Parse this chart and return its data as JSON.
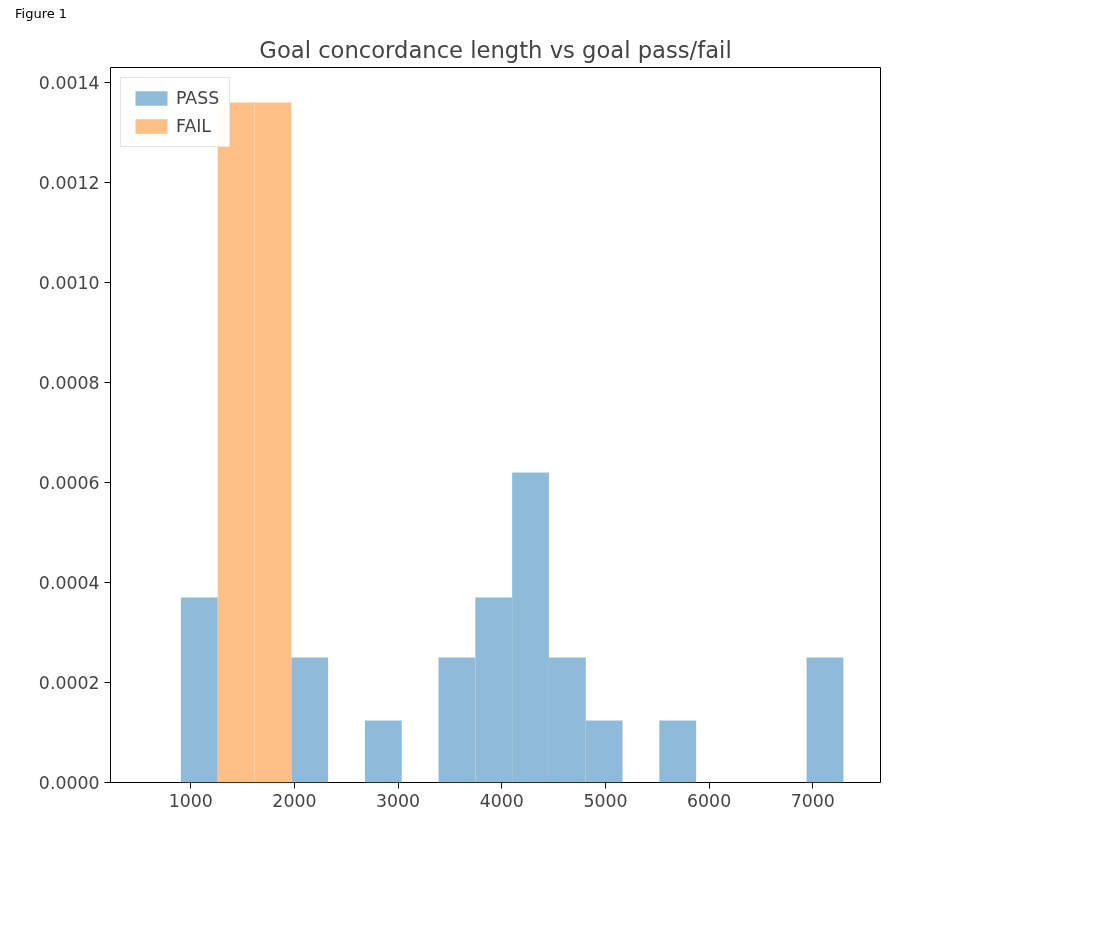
{
  "chart_data": {
    "type": "histogram",
    "title": "Goal concordance length vs goal pass/fail",
    "annotations": [
      "Figure 1"
    ],
    "bins": [
      905,
      1260,
      1615,
      1970,
      2325,
      2680,
      3035,
      3390,
      3745,
      4100,
      4455,
      4810,
      5165,
      5520,
      5875,
      6230,
      6585,
      6940,
      7295
    ],
    "series": [
      {
        "name": "PASS",
        "color": "#8fbbd9",
        "values": [
          0.00037,
          null,
          null,
          0.00025,
          0,
          0.000124,
          0,
          0.00025,
          0.00037,
          0.00062,
          0.00025,
          0.000124,
          0,
          0.000124,
          0,
          0,
          0,
          0.00025
        ]
      },
      {
        "name": "FAIL",
        "color": "#ffbf86",
        "values": [
          0,
          0.00136,
          0.00136,
          0,
          0,
          0,
          0,
          0,
          0,
          0,
          0,
          0,
          0,
          0,
          0,
          0,
          0,
          0
        ]
      }
    ],
    "xlim": [
      226,
      7653
    ],
    "ylim": [
      0,
      0.00143
    ],
    "xticks": [
      1000,
      2000,
      3000,
      4000,
      5000,
      6000,
      7000
    ],
    "yticks": [
      {
        "value": 0,
        "label": "0.0000"
      },
      {
        "value": 0.0002,
        "label": "0.0002"
      },
      {
        "value": 0.0004,
        "label": "0.0004"
      },
      {
        "value": 0.0006,
        "label": "0.0006"
      },
      {
        "value": 0.0008,
        "label": "0.0008"
      },
      {
        "value": 0.001,
        "label": "0.0010"
      },
      {
        "value": 0.0012,
        "label": "0.0012"
      },
      {
        "value": 0.0014,
        "label": "0.0014"
      }
    ],
    "legend": "top left",
    "grid": false
  }
}
